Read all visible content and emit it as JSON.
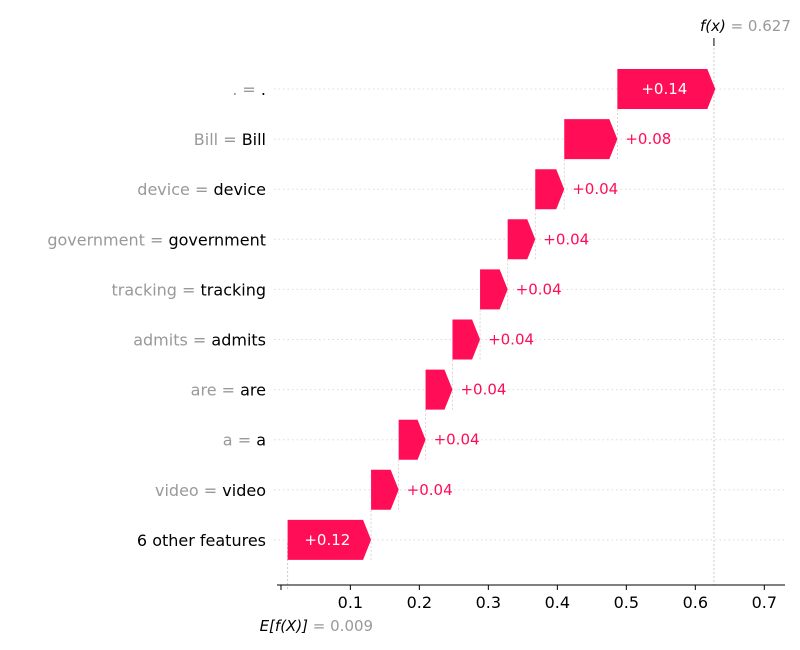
{
  "chart_data": {
    "type": "waterfall",
    "base_value": 0.009,
    "output_value": 0.627,
    "base_label": {
      "prefix": "E[f(X)]",
      "eq": "= ",
      "value": "0.009"
    },
    "output_label": {
      "prefix": "f(x)",
      "eq": "= ",
      "value": "0.627"
    },
    "xlim": [
      -0.002,
      0.73
    ],
    "x_ticks": [
      {
        "value": 0.1,
        "label": "0.1"
      },
      {
        "value": 0.2,
        "label": "0.2"
      },
      {
        "value": 0.3,
        "label": "0.3"
      },
      {
        "value": 0.4,
        "label": "0.4"
      },
      {
        "value": 0.5,
        "label": "0.5"
      },
      {
        "value": 0.6,
        "label": "0.6"
      },
      {
        "value": 0.7,
        "label": "0.7"
      }
    ],
    "features": [
      {
        "feature": ".",
        "eq": "= ",
        "value_text": ".",
        "contribution": 0.142,
        "label": "+0.14"
      },
      {
        "feature": "Bill",
        "eq": " = ",
        "value_text": "Bill",
        "contribution": 0.077,
        "label": "+0.08"
      },
      {
        "feature": "device",
        "eq": " = ",
        "value_text": "device",
        "contribution": 0.042,
        "label": "+0.04"
      },
      {
        "feature": "government",
        "eq": " = ",
        "value_text": "government",
        "contribution": 0.04,
        "label": "+0.04"
      },
      {
        "feature": "tracking",
        "eq": " = ",
        "value_text": "tracking",
        "contribution": 0.04,
        "label": "+0.04"
      },
      {
        "feature": "admits",
        "eq": " = ",
        "value_text": "admits",
        "contribution": 0.04,
        "label": "+0.04"
      },
      {
        "feature": "are",
        "eq": " = ",
        "value_text": "are",
        "contribution": 0.039,
        "label": "+0.04"
      },
      {
        "feature": "a",
        "eq": " = ",
        "value_text": "a",
        "contribution": 0.039,
        "label": "+0.04"
      },
      {
        "feature": "video",
        "eq": "= ",
        "value_text": "video",
        "contribution": 0.04,
        "label": "+0.04"
      },
      {
        "feature": "6 other features",
        "eq": "",
        "value_text": "",
        "contribution": 0.121,
        "label": "+0.12",
        "is_other": true
      }
    ],
    "colors": {
      "positive": "#ff0d57",
      "label_gray": "#999999",
      "grid": "#cccccc"
    }
  }
}
